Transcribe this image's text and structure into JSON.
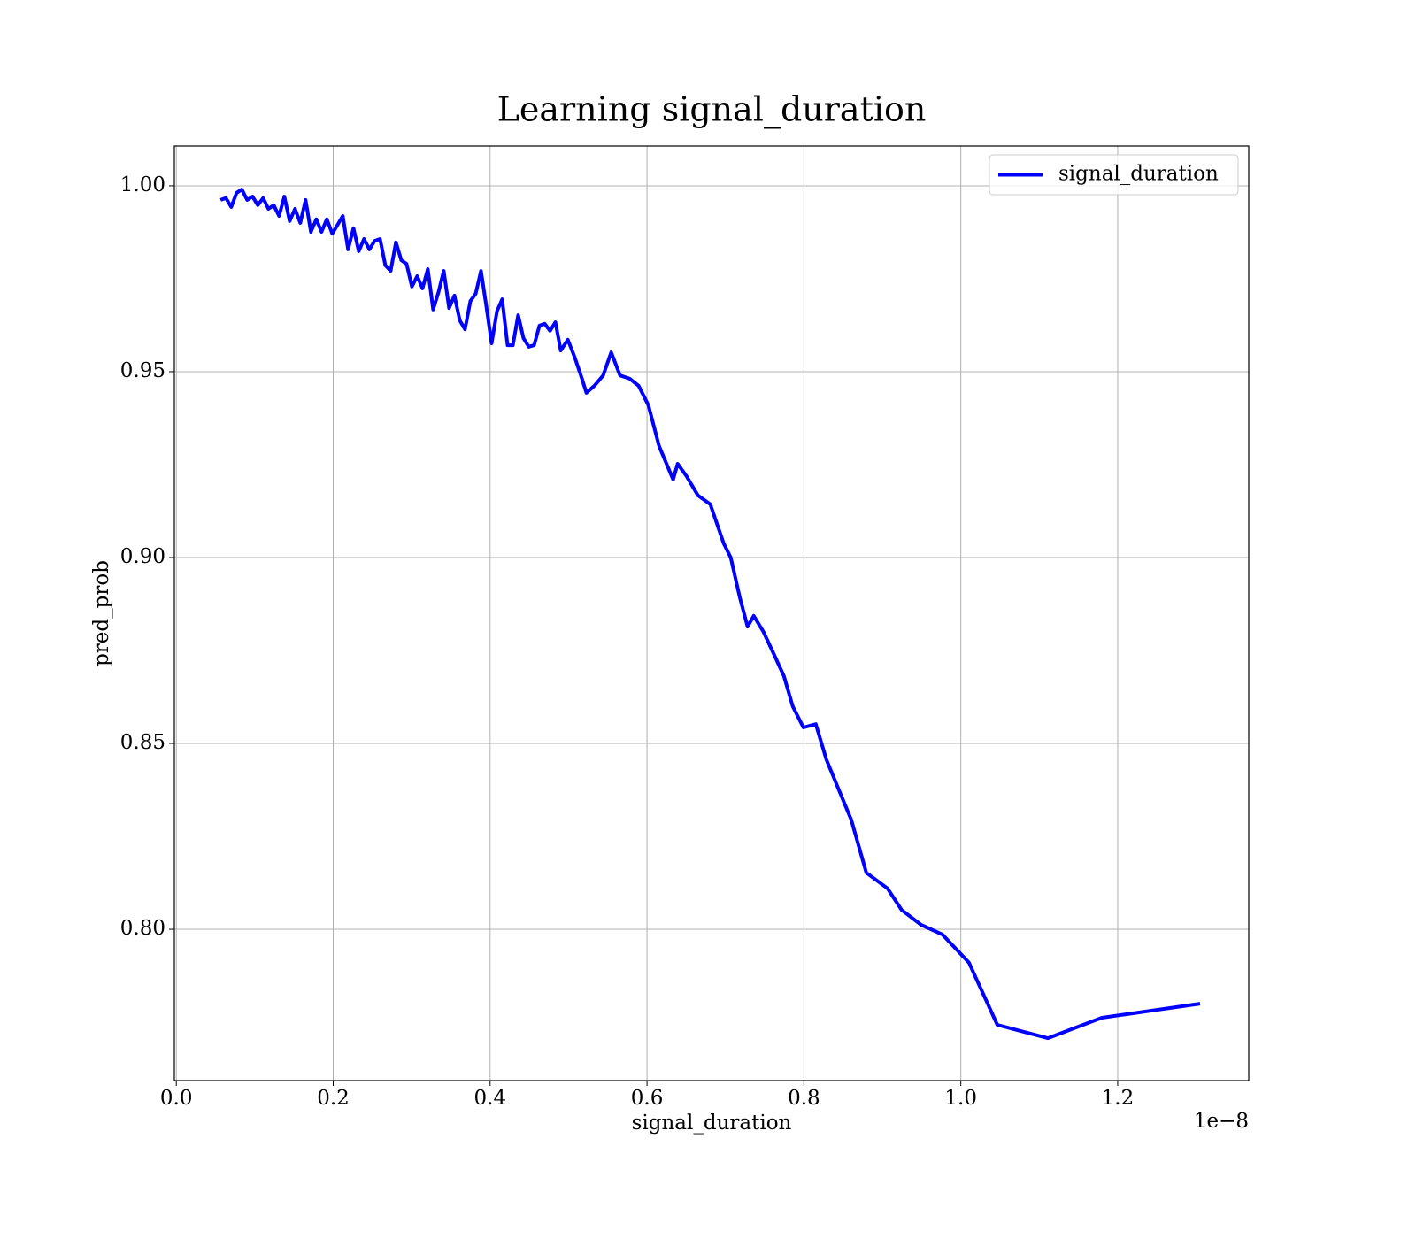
{
  "chart_data": {
    "type": "line",
    "title": "Learning signal_duration",
    "xlabel": "signal_duration",
    "ylabel": "pred_prob",
    "x_offset_label": "1e−8",
    "grid": true,
    "legend": "upper right",
    "xlim": [
      -0.0025,
      1.367
    ],
    "ylim": [
      0.7593,
      1.0107
    ],
    "xticks": [
      {
        "value": 0,
        "label": "0.0"
      },
      0.2,
      0.4,
      0.6,
      0.8,
      {
        "value": 1,
        "label": "1.0"
      },
      1.2
    ],
    "yticks": [
      {
        "value": 0.8,
        "label": "0.80"
      },
      0.85,
      {
        "value": 0.9,
        "label": "0.90"
      },
      0.95,
      {
        "value": 1,
        "label": "1.00"
      }
    ],
    "x": [
      0.0564,
      0.0632,
      0.07,
      0.0768,
      0.0835,
      0.0903,
      0.0971,
      0.1039,
      0.1106,
      0.1174,
      0.1242,
      0.131,
      0.1377,
      0.1445,
      0.1513,
      0.158,
      0.1648,
      0.1716,
      0.1784,
      0.1851,
      0.1919,
      0.1987,
      0.2055,
      0.2122,
      0.219,
      0.2258,
      0.2326,
      0.2393,
      0.2461,
      0.2529,
      0.2597,
      0.2664,
      0.2732,
      0.28,
      0.2867,
      0.2935,
      0.3003,
      0.3071,
      0.3138,
      0.3206,
      0.3274,
      0.3342,
      0.3409,
      0.3477,
      0.3545,
      0.3613,
      0.368,
      0.3748,
      0.3816,
      0.3884,
      0.3951,
      0.4019,
      0.4087,
      0.4154,
      0.4222,
      0.429,
      0.4358,
      0.4425,
      0.4493,
      0.4561,
      0.4629,
      0.4696,
      0.4764,
      0.4832,
      0.49,
      0.499,
      0.508,
      0.5171,
      0.5227,
      0.5329,
      0.5441,
      0.5543,
      0.5656,
      0.578,
      0.5893,
      0.6017,
      0.6153,
      0.6333,
      0.639,
      0.6503,
      0.6649,
      0.6807,
      0.6977,
      0.7067,
      0.718,
      0.7282,
      0.7361,
      0.7485,
      0.7632,
      0.7745,
      0.7857,
      0.7993,
      0.8151,
      0.8286,
      0.8444,
      0.8603,
      0.8795,
      0.9065,
      0.9246,
      0.9494,
      0.9765,
      1.0104,
      1.0465,
      1.1109,
      1.1797,
      1.305
    ],
    "series": [
      {
        "name": "signal_duration",
        "color": "#0000ff",
        "values": [
          0.9962,
          0.9967,
          0.9943,
          0.9981,
          0.999,
          0.9962,
          0.9971,
          0.9948,
          0.9967,
          0.9938,
          0.9948,
          0.9919,
          0.9971,
          0.9905,
          0.9938,
          0.99,
          0.9962,
          0.9876,
          0.991,
          0.9876,
          0.991,
          0.9871,
          0.9895,
          0.9919,
          0.9829,
          0.9886,
          0.9824,
          0.9857,
          0.9829,
          0.9852,
          0.9857,
          0.9786,
          0.9771,
          0.9848,
          0.98,
          0.979,
          0.9729,
          0.9757,
          0.9724,
          0.9776,
          0.9667,
          0.9714,
          0.9771,
          0.9671,
          0.9705,
          0.9638,
          0.9614,
          0.969,
          0.971,
          0.9771,
          0.9676,
          0.9576,
          0.9662,
          0.9695,
          0.9571,
          0.9571,
          0.9652,
          0.959,
          0.9567,
          0.9571,
          0.9624,
          0.9629,
          0.961,
          0.9633,
          0.9557,
          0.9586,
          0.9538,
          0.9481,
          0.9443,
          0.9462,
          0.949,
          0.9552,
          0.949,
          0.9481,
          0.9462,
          0.941,
          0.93,
          0.921,
          0.9252,
          0.9219,
          0.9167,
          0.9143,
          0.9038,
          0.9,
          0.8895,
          0.8814,
          0.8843,
          0.88,
          0.8733,
          0.8681,
          0.86,
          0.8543,
          0.8552,
          0.8457,
          0.8376,
          0.8295,
          0.8152,
          0.811,
          0.8052,
          0.8012,
          0.7986,
          0.791,
          0.7743,
          0.7707,
          0.7762,
          0.78
        ]
      }
    ]
  }
}
